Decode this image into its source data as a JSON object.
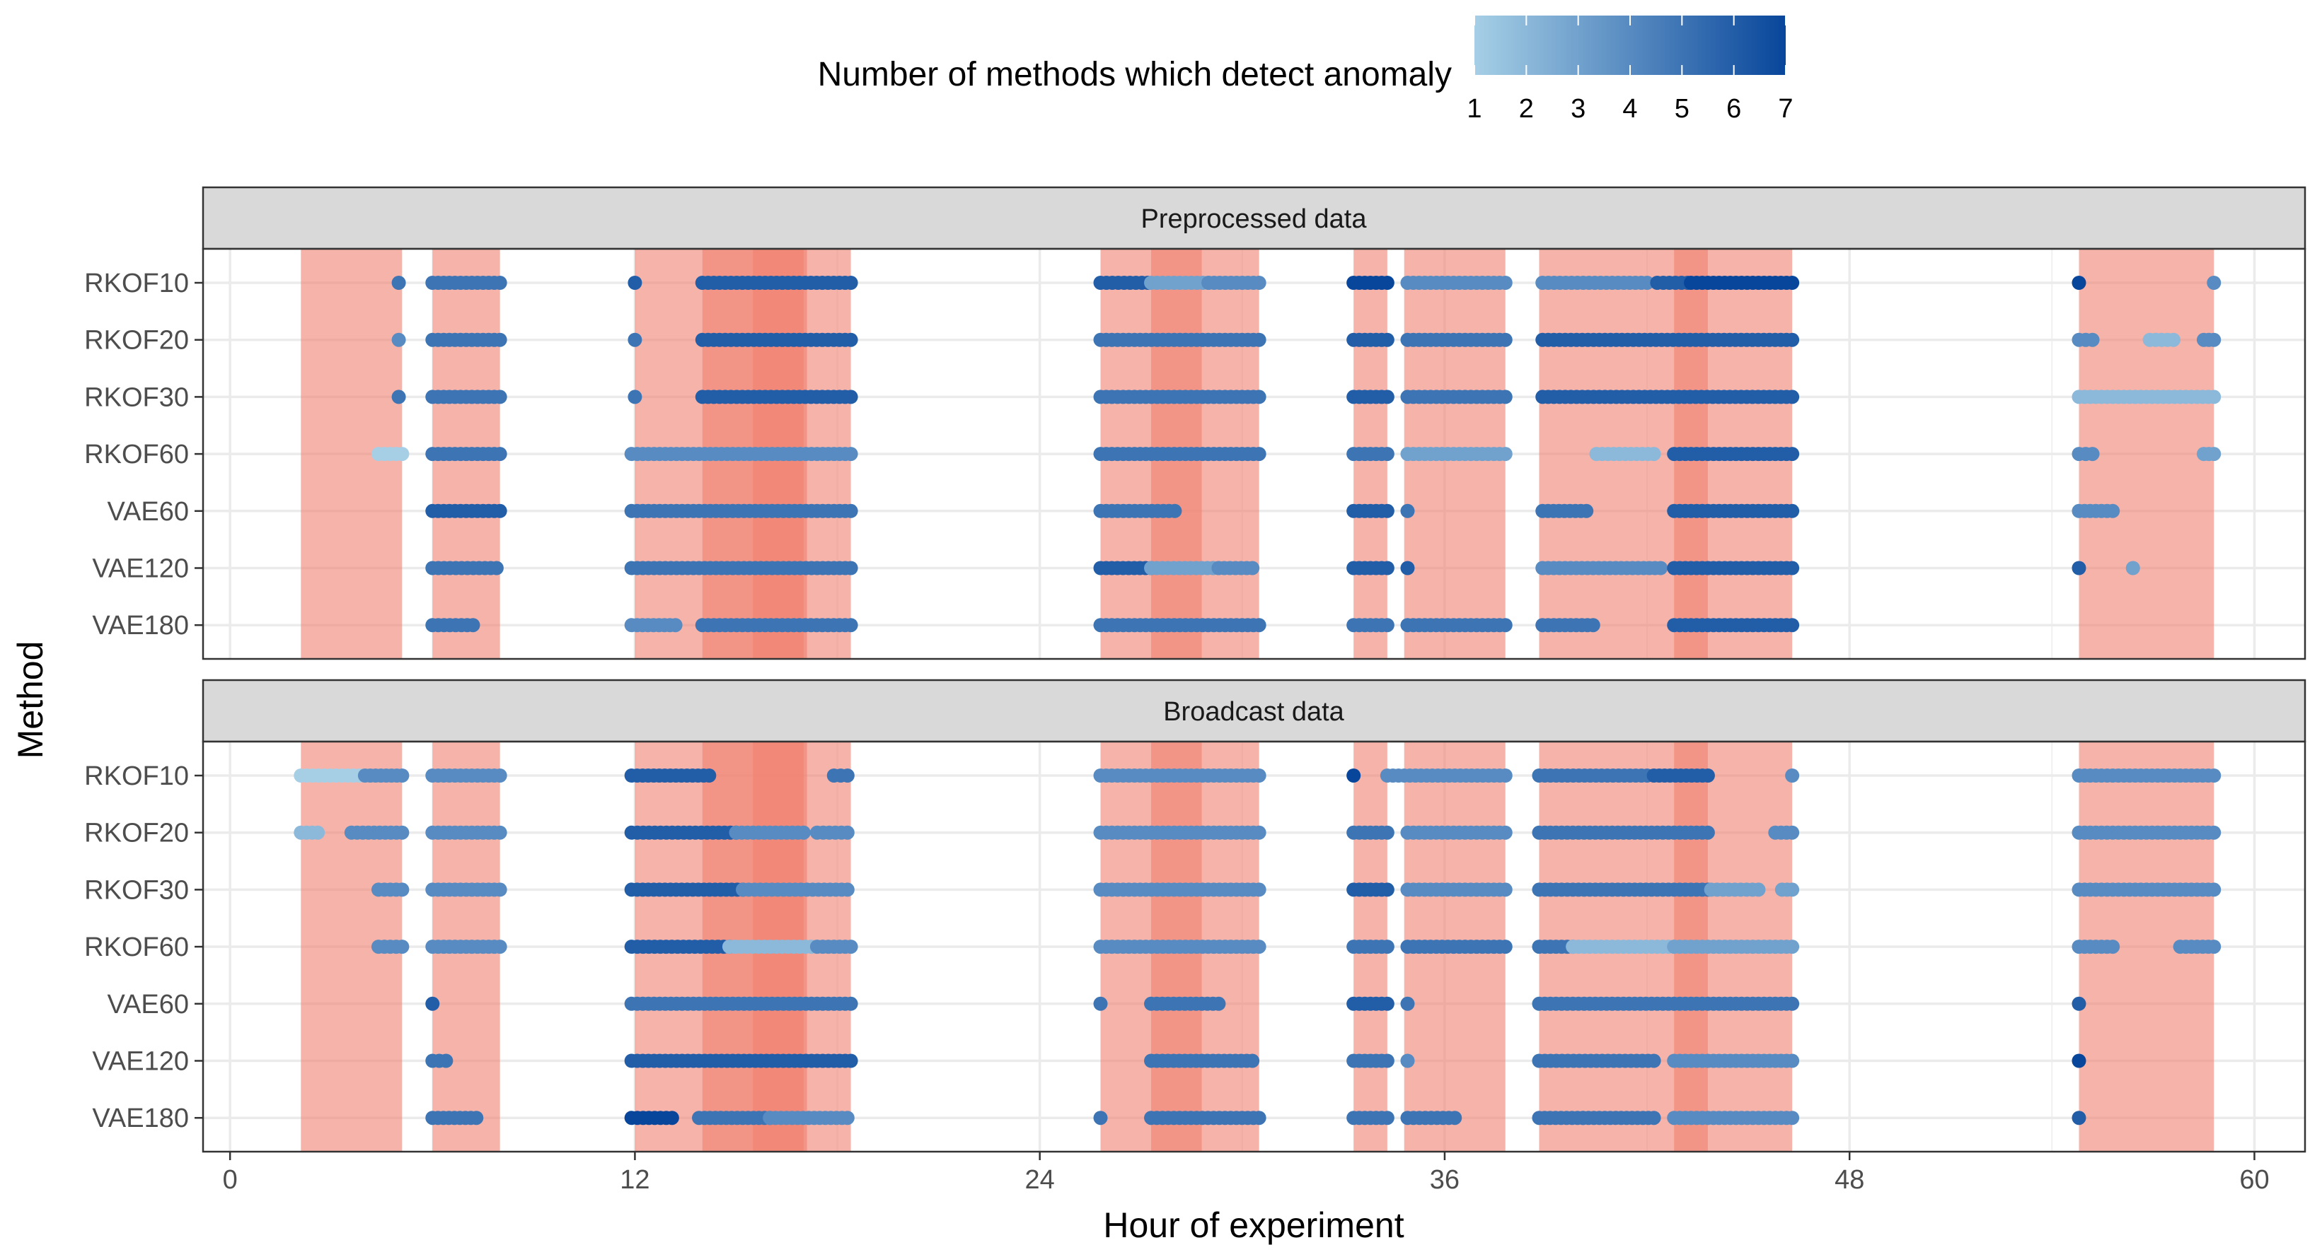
{
  "chart_data": {
    "type": "scatter",
    "title": "",
    "xlabel": "Hour of experiment",
    "ylabel": "Method",
    "xlim": [
      -0.8,
      61.5
    ],
    "x_ticks": [
      0,
      12,
      24,
      36,
      48,
      60
    ],
    "methods": [
      "RKOF10",
      "RKOF20",
      "RKOF30",
      "RKOF60",
      "VAE60",
      "VAE120",
      "VAE180"
    ],
    "legend": {
      "title": "Number of methods which detect anomaly",
      "ticks": [
        1,
        2,
        3,
        4,
        5,
        6,
        7
      ],
      "low_color": "#a6cfe6",
      "high_color": "#08469b",
      "position": "top"
    },
    "anomaly_windows": [
      {
        "start": 2.1,
        "end": 5.1,
        "color": "#f08070"
      },
      {
        "start": 6.0,
        "end": 8.0,
        "color": "#f08070"
      },
      {
        "start": 12.0,
        "end": 18.4,
        "color": "#f08070"
      },
      {
        "start": 14.0,
        "end": 17.1,
        "color": "#f08070"
      },
      {
        "start": 15.5,
        "end": 17.0,
        "color": "#f08070"
      },
      {
        "start": 25.8,
        "end": 30.5,
        "color": "#f08070"
      },
      {
        "start": 27.3,
        "end": 28.8,
        "color": "#f08070"
      },
      {
        "start": 33.3,
        "end": 34.3,
        "color": "#f08070"
      },
      {
        "start": 34.8,
        "end": 37.8,
        "color": "#f08070"
      },
      {
        "start": 38.8,
        "end": 46.3,
        "color": "#f08070"
      },
      {
        "start": 42.8,
        "end": 43.8,
        "color": "#f08070"
      },
      {
        "start": 54.8,
        "end": 58.8,
        "color": "#f08070"
      }
    ],
    "panels": [
      {
        "name": "Preprocessed data",
        "detections": {
          "RKOF10": [
            [
              5.0,
              5.0,
              5
            ],
            [
              6.0,
              8.0,
              5
            ],
            [
              12.0,
              12.0,
              6
            ],
            [
              14.0,
              18.4,
              6
            ],
            [
              25.8,
              27.2,
              6
            ],
            [
              27.3,
              29.0,
              3
            ],
            [
              29.0,
              30.5,
              4
            ],
            [
              33.3,
              34.3,
              7
            ],
            [
              34.9,
              37.8,
              4
            ],
            [
              38.9,
              42.0,
              4
            ],
            [
              42.3,
              43.2,
              6
            ],
            [
              43.3,
              46.3,
              7
            ],
            [
              54.8,
              54.8,
              7
            ],
            [
              58.8,
              58.8,
              4
            ]
          ],
          "RKOF20": [
            [
              5.0,
              5.0,
              4
            ],
            [
              6.0,
              8.0,
              5
            ],
            [
              12.0,
              12.0,
              5
            ],
            [
              14.0,
              18.4,
              6
            ],
            [
              25.8,
              30.5,
              5
            ],
            [
              33.3,
              34.3,
              6
            ],
            [
              34.9,
              37.8,
              5
            ],
            [
              38.9,
              46.3,
              6
            ],
            [
              54.8,
              55.2,
              4
            ],
            [
              56.9,
              57.6,
              2
            ],
            [
              58.5,
              58.8,
              4
            ]
          ],
          "RKOF30": [
            [
              5.0,
              5.0,
              5
            ],
            [
              6.0,
              8.0,
              5
            ],
            [
              12.0,
              12.0,
              5
            ],
            [
              14.0,
              18.4,
              6
            ],
            [
              25.8,
              30.5,
              5
            ],
            [
              33.3,
              34.3,
              6
            ],
            [
              34.9,
              37.8,
              5
            ],
            [
              38.9,
              46.3,
              6
            ],
            [
              54.8,
              58.8,
              2
            ]
          ],
          "RKOF60": [
            [
              4.4,
              5.1,
              1
            ],
            [
              6.0,
              8.0,
              5
            ],
            [
              11.9,
              18.4,
              4
            ],
            [
              25.8,
              30.5,
              5
            ],
            [
              33.3,
              34.3,
              5
            ],
            [
              34.9,
              37.8,
              3
            ],
            [
              40.5,
              42.2,
              2
            ],
            [
              42.8,
              46.3,
              6
            ],
            [
              54.8,
              55.2,
              4
            ],
            [
              58.5,
              58.8,
              3
            ]
          ],
          "VAE60": [
            [
              6.0,
              8.0,
              6
            ],
            [
              11.9,
              18.4,
              5
            ],
            [
              25.8,
              28.0,
              5
            ],
            [
              33.3,
              34.3,
              6
            ],
            [
              34.9,
              34.9,
              5
            ],
            [
              38.9,
              40.2,
              5
            ],
            [
              42.8,
              46.3,
              6
            ],
            [
              54.8,
              55.8,
              4
            ]
          ],
          "VAE120": [
            [
              6.0,
              7.9,
              5
            ],
            [
              11.9,
              18.4,
              5
            ],
            [
              25.8,
              27.3,
              6
            ],
            [
              27.3,
              29.3,
              3
            ],
            [
              29.3,
              30.3,
              4
            ],
            [
              33.3,
              34.3,
              6
            ],
            [
              34.9,
              34.9,
              6
            ],
            [
              38.9,
              42.4,
              4
            ],
            [
              42.8,
              46.3,
              6
            ],
            [
              54.8,
              54.8,
              6
            ],
            [
              56.4,
              56.4,
              3
            ]
          ],
          "VAE180": [
            [
              6.0,
              7.2,
              5
            ],
            [
              11.9,
              13.2,
              4
            ],
            [
              14.0,
              18.4,
              5
            ],
            [
              25.8,
              30.5,
              5
            ],
            [
              33.3,
              34.3,
              5
            ],
            [
              34.9,
              37.8,
              5
            ],
            [
              38.9,
              40.4,
              5
            ],
            [
              42.8,
              46.3,
              6
            ]
          ]
        }
      },
      {
        "name": "Broadcast data",
        "detections": {
          "RKOF10": [
            [
              2.1,
              4.0,
              1
            ],
            [
              4.0,
              5.1,
              4
            ],
            [
              6.0,
              8.0,
              4
            ],
            [
              11.9,
              14.2,
              6
            ],
            [
              17.9,
              18.3,
              5
            ],
            [
              25.8,
              30.5,
              4
            ],
            [
              33.3,
              33.3,
              7
            ],
            [
              34.3,
              37.8,
              4
            ],
            [
              38.8,
              42.0,
              5
            ],
            [
              42.2,
              43.8,
              6
            ],
            [
              46.3,
              46.3,
              4
            ],
            [
              54.8,
              58.8,
              4
            ]
          ],
          "RKOF20": [
            [
              2.1,
              2.6,
              2
            ],
            [
              3.6,
              5.1,
              4
            ],
            [
              6.0,
              8.0,
              4
            ],
            [
              11.9,
              15.0,
              6
            ],
            [
              15.0,
              17.0,
              4
            ],
            [
              17.4,
              18.3,
              4
            ],
            [
              25.8,
              30.5,
              4
            ],
            [
              33.3,
              34.3,
              5
            ],
            [
              34.9,
              37.8,
              4
            ],
            [
              38.8,
              43.8,
              5
            ],
            [
              45.8,
              46.3,
              4
            ],
            [
              54.8,
              58.8,
              4
            ]
          ],
          "RKOF30": [
            [
              4.4,
              5.1,
              4
            ],
            [
              6.0,
              8.0,
              4
            ],
            [
              11.9,
              15.2,
              6
            ],
            [
              15.2,
              18.3,
              4
            ],
            [
              25.8,
              30.5,
              4
            ],
            [
              33.3,
              34.3,
              6
            ],
            [
              34.9,
              37.8,
              4
            ],
            [
              38.8,
              43.8,
              5
            ],
            [
              43.9,
              45.3,
              3
            ],
            [
              46.0,
              46.3,
              3
            ],
            [
              54.8,
              58.8,
              4
            ]
          ],
          "RKOF60": [
            [
              4.4,
              5.1,
              4
            ],
            [
              6.0,
              8.0,
              4
            ],
            [
              11.9,
              14.8,
              6
            ],
            [
              14.8,
              17.4,
              2
            ],
            [
              17.4,
              18.4,
              4
            ],
            [
              25.8,
              30.5,
              4
            ],
            [
              33.3,
              34.3,
              5
            ],
            [
              34.9,
              37.8,
              5
            ],
            [
              38.8,
              39.8,
              5
            ],
            [
              39.8,
              42.8,
              2
            ],
            [
              42.8,
              46.3,
              3
            ],
            [
              54.8,
              55.8,
              4
            ],
            [
              57.8,
              58.8,
              4
            ]
          ],
          "VAE60": [
            [
              6.0,
              6.0,
              6
            ],
            [
              11.9,
              18.4,
              5
            ],
            [
              25.8,
              25.8,
              5
            ],
            [
              27.3,
              29.3,
              5
            ],
            [
              33.3,
              34.3,
              6
            ],
            [
              34.9,
              34.9,
              5
            ],
            [
              38.8,
              46.3,
              5
            ],
            [
              54.8,
              54.8,
              6
            ]
          ],
          "VAE120": [
            [
              6.0,
              6.4,
              5
            ],
            [
              11.9,
              18.4,
              6
            ],
            [
              27.3,
              30.3,
              5
            ],
            [
              33.3,
              34.3,
              5
            ],
            [
              34.9,
              34.9,
              4
            ],
            [
              38.8,
              42.2,
              5
            ],
            [
              42.8,
              46.3,
              4
            ],
            [
              54.8,
              54.8,
              7
            ]
          ],
          "VAE180": [
            [
              6.0,
              7.3,
              5
            ],
            [
              11.9,
              13.1,
              7
            ],
            [
              13.9,
              16.0,
              5
            ],
            [
              16.0,
              18.3,
              4
            ],
            [
              25.8,
              25.8,
              5
            ],
            [
              27.3,
              30.5,
              5
            ],
            [
              33.3,
              34.3,
              5
            ],
            [
              34.9,
              36.3,
              5
            ],
            [
              38.8,
              40.1,
              5
            ],
            [
              40.1,
              42.2,
              5
            ],
            [
              42.8,
              46.3,
              4
            ],
            [
              54.8,
              54.8,
              6
            ]
          ]
        }
      }
    ]
  }
}
